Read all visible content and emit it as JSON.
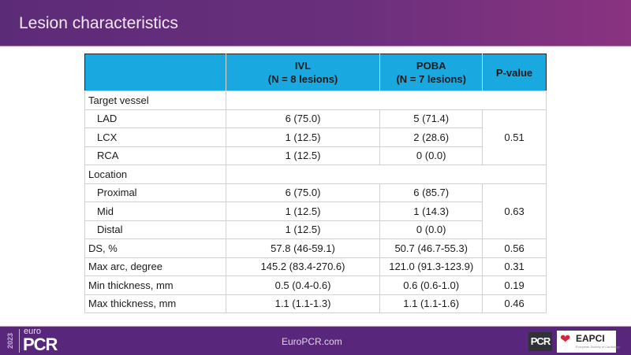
{
  "header": {
    "title": "Lesion characteristics"
  },
  "table": {
    "columns": [
      "",
      "IVL",
      "(N = 8 lesions)",
      "POBA",
      "(N = 7 lesions)",
      "P-value"
    ],
    "rows": [
      {
        "label": "Target vessel",
        "type": "group"
      },
      {
        "label": "LAD",
        "ivl": "6 (75.0)",
        "poba": "5 (71.4)",
        "p": "0.51"
      },
      {
        "label": "LCX",
        "ivl": "1 (12.5)",
        "poba": "2 (28.6)"
      },
      {
        "label": "RCA",
        "ivl": "1 (12.5)",
        "poba": "0 (0.0)"
      },
      {
        "label": "Location",
        "type": "group"
      },
      {
        "label": "Proximal",
        "ivl": "6 (75.0)",
        "poba": "6 (85.7)",
        "p": "0.63"
      },
      {
        "label": "Mid",
        "ivl": "1 (12.5)",
        "poba": "1 (14.3)"
      },
      {
        "label": "Distal",
        "ivl": "1 (12.5)",
        "poba": "0 (0.0)"
      },
      {
        "label": "DS, %",
        "ivl": "57.8 (46-59.1)",
        "poba": "50.7 (46.7-55.3)",
        "p": "0.56"
      },
      {
        "label": "Max arc, degree",
        "ivl": "145.2 (83.4-270.6)",
        "poba": "121.0 (91.3-123.9)",
        "p": "0.31"
      },
      {
        "label": "Min thickness, mm",
        "ivl": "0.5 (0.4-0.6)",
        "poba": "0.6 (0.6-1.0)",
        "p": "0.19"
      },
      {
        "label": "Max thickness, mm",
        "ivl": "1.1 (1.1-1.3)",
        "poba": "1.1 (1.1-1.6)",
        "p": "0.46"
      }
    ]
  },
  "footer": {
    "year": "2023",
    "logo_euro": "euro",
    "logo_pcr": "PCR",
    "site": "EuroPCR.com",
    "pcr_badge": "PCR",
    "eapci": "EAPCI",
    "eapci_sub": "European Society of Cardiology"
  },
  "colors": {
    "header_bg": "#19a8e0",
    "bar_purple": "#5c2b78"
  }
}
